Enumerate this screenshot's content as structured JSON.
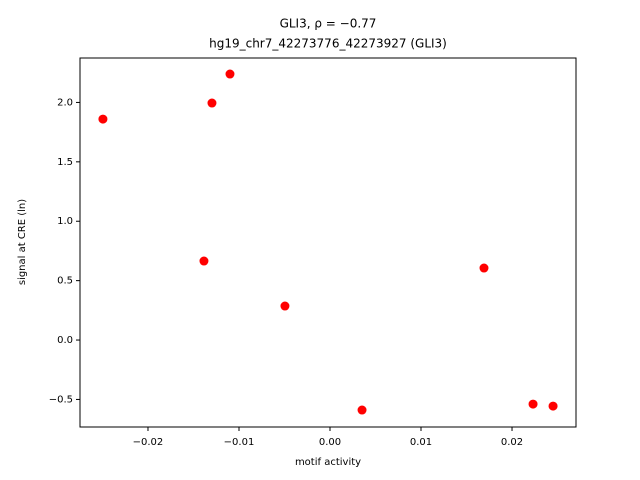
{
  "chart_data": {
    "type": "scatter",
    "title": "GLI3, ρ = −0.77",
    "subtitle": "hg19_chr7_42273776_42273927 (GLI3)",
    "x_label": "motif activity",
    "y_label": "signal at CRE (ln)",
    "color": "#ff0000",
    "grid": false,
    "x": [
      -0.02495,
      -0.01297,
      -0.01099,
      -0.01385,
      -0.00495,
      0.00352,
      0.01692,
      0.02231,
      0.02451
    ],
    "values": [
      1.86,
      1.995,
      2.239,
      0.665,
      0.286,
      -0.589,
      0.606,
      -0.539,
      -0.556
    ],
    "xlim": [
      -0.02747,
      0.02703
    ],
    "ylim": [
      -0.732,
      2.374
    ],
    "xticks": [
      {
        "value": -0.02,
        "label": "−0.02"
      },
      {
        "value": -0.01,
        "label": "−0.01"
      },
      {
        "value": 0,
        "label": "0.00"
      },
      0.01,
      0.02
    ],
    "yticks": [
      {
        "value": -0.5,
        "label": "−0.5"
      },
      {
        "value": 0,
        "label": "0.0"
      },
      0.5,
      {
        "value": 1,
        "label": "1.0"
      },
      1.5,
      {
        "value": 2,
        "label": "2.0"
      }
    ]
  }
}
